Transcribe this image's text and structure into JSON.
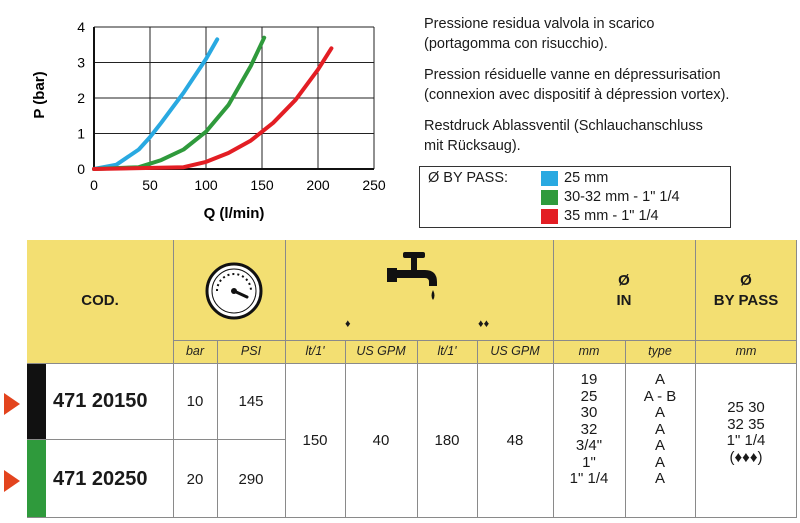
{
  "chart_data": {
    "type": "line",
    "title": "",
    "xlabel": "Q  (l/min)",
    "ylabel": "P (bar)",
    "xlim": [
      0,
      250
    ],
    "ylim": [
      0,
      4
    ],
    "xticks": [
      "0",
      "50",
      "100",
      "150",
      "200",
      "250"
    ],
    "yticks": [
      "0",
      "1",
      "2",
      "3",
      "4"
    ],
    "grid": true,
    "series": [
      {
        "name": "25 mm",
        "color": "#29a9e1",
        "x": [
          0,
          20,
          40,
          50,
          60,
          80,
          100,
          110
        ],
        "y": [
          0,
          0.12,
          0.55,
          0.9,
          1.3,
          2.15,
          3.1,
          3.65
        ]
      },
      {
        "name": "30-32 mm - 1\" 1/4",
        "color": "#2f9a3c",
        "x": [
          0,
          40,
          60,
          80,
          100,
          120,
          140,
          152
        ],
        "y": [
          0,
          0.05,
          0.25,
          0.55,
          1.05,
          1.8,
          2.9,
          3.7
        ]
      },
      {
        "name": "35 mm - 1\" 1/4",
        "color": "#e31e24",
        "x": [
          0,
          80,
          100,
          120,
          140,
          160,
          180,
          200,
          212
        ],
        "y": [
          0,
          0.05,
          0.2,
          0.45,
          0.8,
          1.3,
          1.95,
          2.8,
          3.4
        ]
      }
    ]
  },
  "description": {
    "it_line1": "Pressione residua valvola in scarico",
    "it_line2": "(portagomma con risucchio).",
    "fr_line1": "Pression résiduelle vanne en dépressurisation",
    "fr_line2": "(connexion avec dispositif à dépression vortex).",
    "de_line1": "Restdruck Ablassventil (Schlauchanschluss",
    "de_line2": "mit Rücksaug)."
  },
  "legend": {
    "title": "Ø BY PASS:",
    "items": [
      {
        "label": "25 mm",
        "color": "#29a9e1"
      },
      {
        "label": "30-32 mm - 1\" 1/4",
        "color": "#2f9a3c"
      },
      {
        "label": "35 mm - 1\" 1/4",
        "color": "#e31e24"
      }
    ]
  },
  "table": {
    "header": {
      "cod": "COD.",
      "in_symbol": "Ø",
      "in_label": "IN",
      "bypass_symbol": "Ø",
      "bypass_label": "BY PASS",
      "icon_gauge": "pressure-gauge-icon",
      "icon_tap": "water-tap-icon",
      "diamond_one": "♦",
      "diamond_two": "♦♦"
    },
    "subheaders": {
      "bar": "bar",
      "psi": "PSI",
      "lt1": "lt/1'",
      "usgpm1": "US GPM",
      "lt2": "lt/1'",
      "usgpm2": "US GPM",
      "mm": "mm",
      "type": "type",
      "bp_mm": "mm"
    },
    "rows": [
      {
        "code": "471 20150",
        "bar": "10",
        "psi": "145",
        "color_swatch": "#111111",
        "arrow_color": "#e3441e"
      },
      {
        "code": "471 20250",
        "bar": "20",
        "psi": "290",
        "color_swatch": "#2f9a3c",
        "arrow_color": "#e3441e"
      }
    ],
    "shared": {
      "flow1_lt": "150",
      "flow1_gpm": "40",
      "flow2_lt": "180",
      "flow2_gpm": "48",
      "in_mm": "19\n25\n30\n32\n3/4\"\n1\"\n1\" 1/4",
      "in_type": "A\nA - B\nA\nA\nA\nA\nA",
      "bypass_mm": "25 30\n32 35\n1\" 1/4\n(♦♦♦)"
    }
  }
}
